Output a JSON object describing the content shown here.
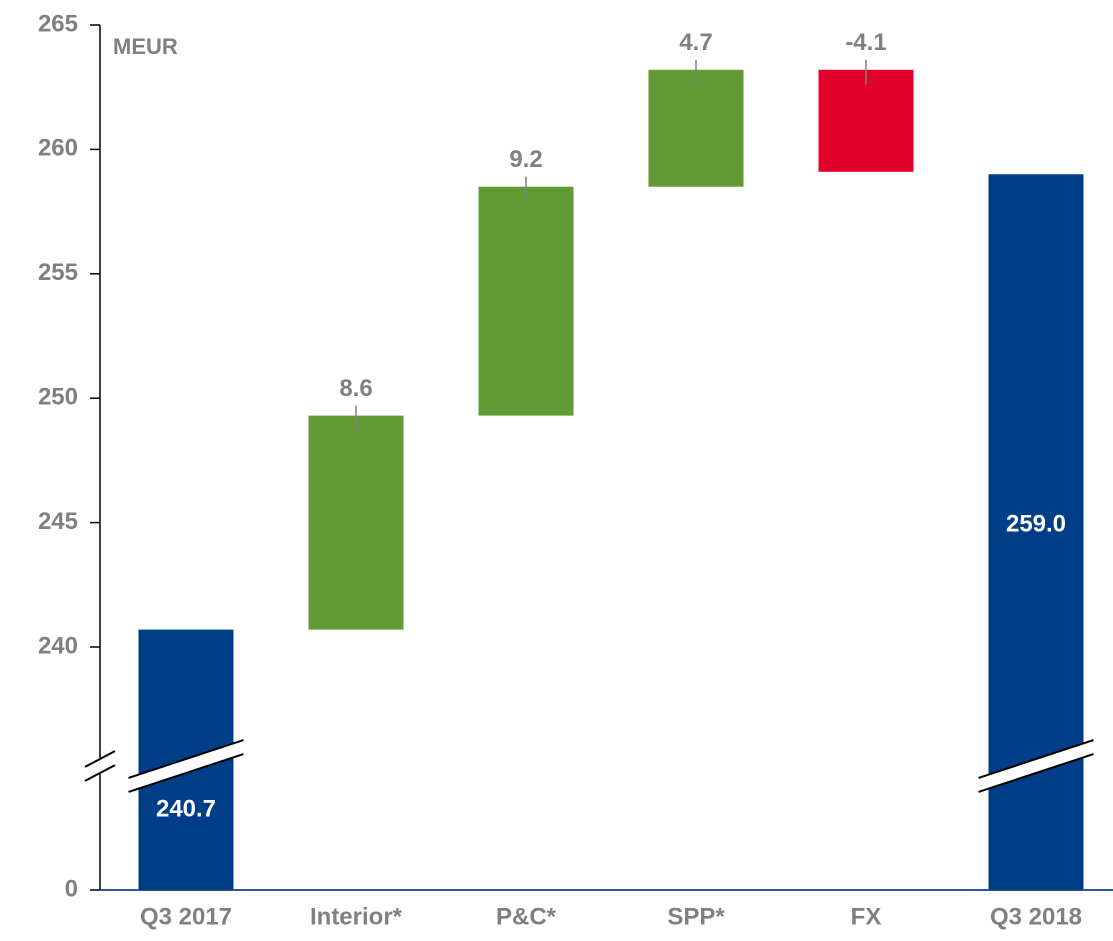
{
  "chart_data": {
    "type": "waterfall",
    "unit_label": "MEUR",
    "categories": [
      "Q3 2017",
      "Interior*",
      "P&C*",
      "SPP*",
      "FX",
      "Q3 2018"
    ],
    "values": [
      240.7,
      8.6,
      9.2,
      4.7,
      -4.1,
      259.0
    ],
    "value_labels": [
      "240.7",
      "8.6",
      "9.2",
      "4.7",
      "-4.1",
      "259.0"
    ],
    "colors": {
      "total": "#003f87",
      "increase": "#629b35",
      "decrease": "#e00029"
    },
    "ylim": [
      0,
      265
    ],
    "yticks": [
      0,
      240,
      245,
      250,
      255,
      260,
      265
    ],
    "axis_break": true
  }
}
